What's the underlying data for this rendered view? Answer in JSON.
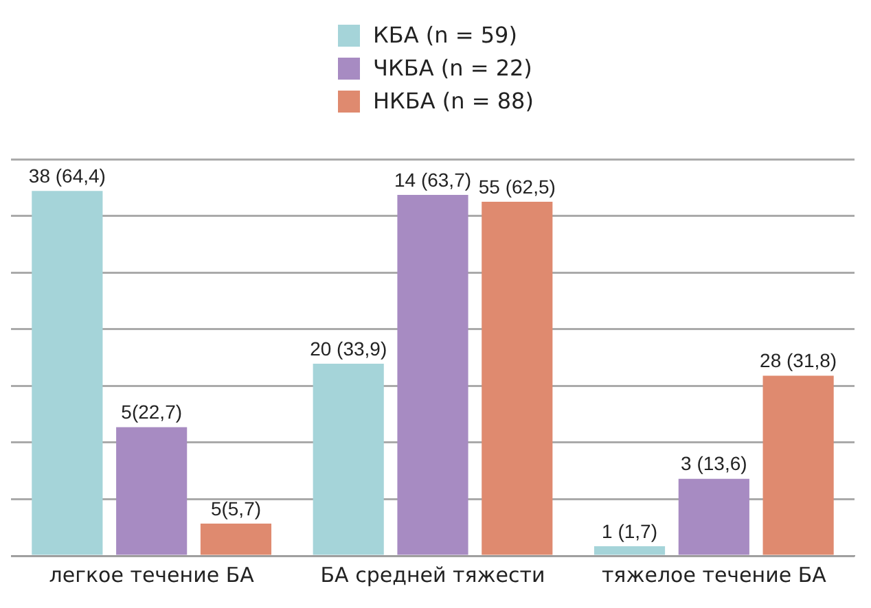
{
  "chart_data": {
    "type": "bar",
    "categories": [
      "легкое течение БА",
      "БА средней тяжести",
      "тяжелое течение БА"
    ],
    "series": [
      {
        "name": "КБА (n = 59)",
        "color": "#a5d4d9",
        "values": [
          64.4,
          33.9,
          1.7
        ],
        "value_labels": [
          "38 (64,4)",
          "20 (33,9)",
          "1 (1,7)"
        ]
      },
      {
        "name": "ЧКБА (n = 22)",
        "color": "#a78bc2",
        "values": [
          22.7,
          63.7,
          13.6
        ],
        "value_labels": [
          "5(22,7)",
          "14 (63,7)",
          "3 (13,6)"
        ]
      },
      {
        "name": "НКБА (n = 88)",
        "color": "#df8a6f",
        "values": [
          5.7,
          62.5,
          31.8
        ],
        "value_labels": [
          "5(5,7)",
          "55 (62,5)",
          "28 (31,8)"
        ]
      }
    ],
    "ylim": [
      0,
      70
    ],
    "yticks": [
      {
        "value": 0,
        "label": null
      },
      {
        "value": 10,
        "label": null
      },
      {
        "value": 20,
        "label": null
      },
      {
        "value": 30,
        "label": null
      },
      {
        "value": 40,
        "label": null
      },
      {
        "value": 50,
        "label": null
      },
      {
        "value": 60,
        "label": null
      },
      {
        "value": 70,
        "label": null
      }
    ],
    "tick_labels": "x",
    "grid": "y",
    "legend": "top"
  }
}
